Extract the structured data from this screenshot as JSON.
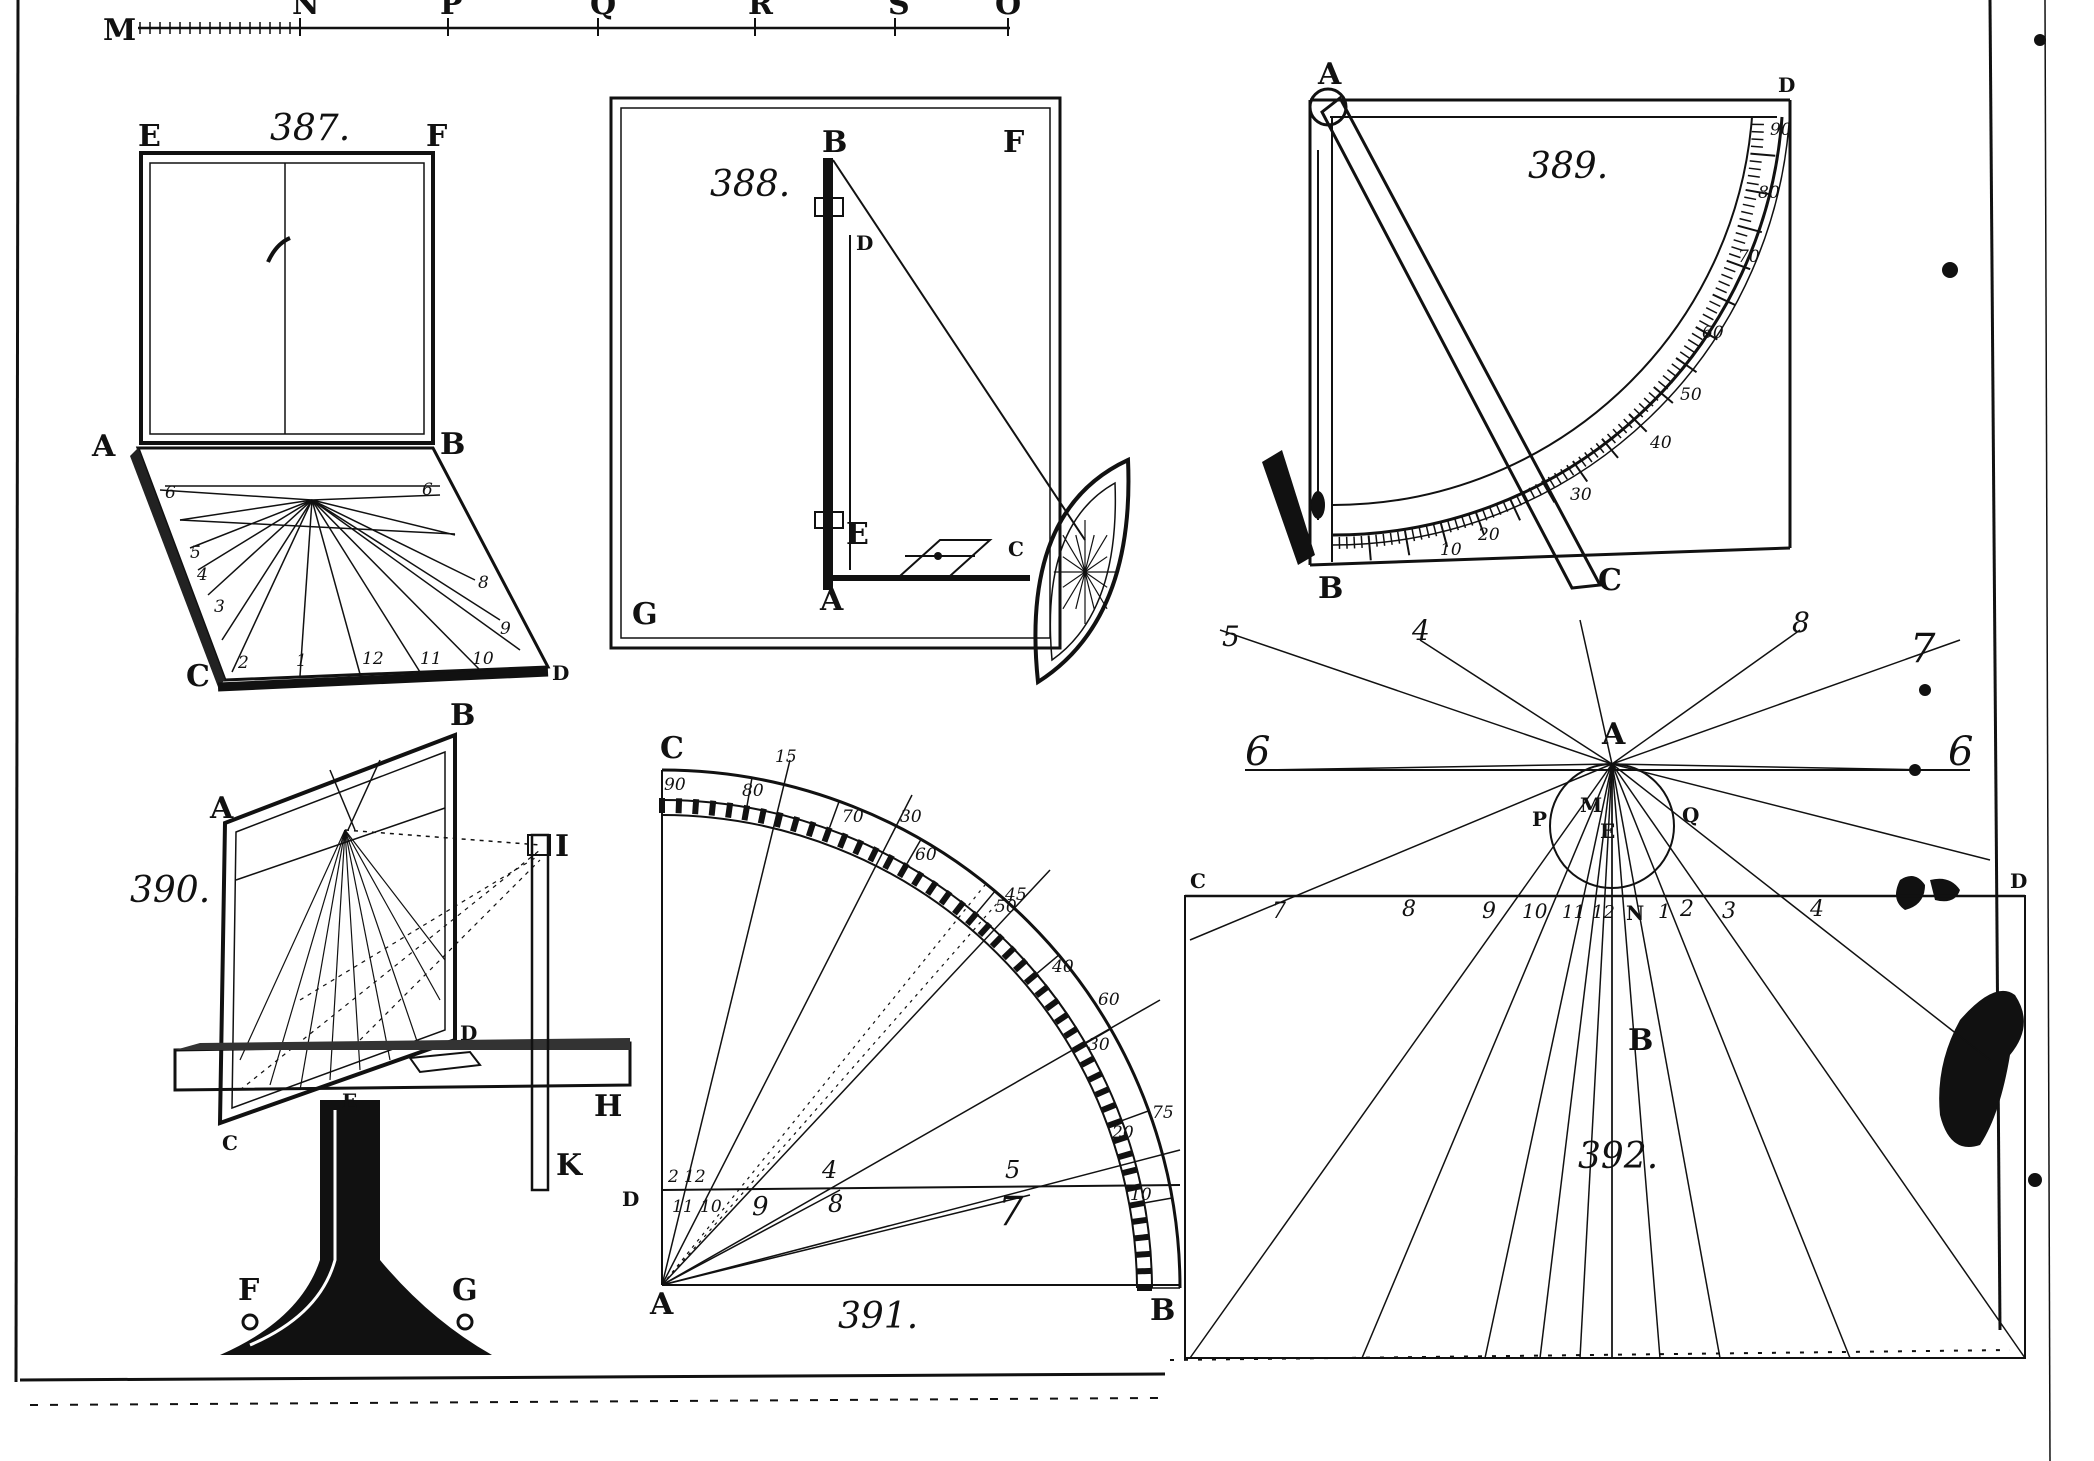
{
  "scale_bar": {
    "labels": [
      "M",
      "N",
      "P",
      "Q",
      "R",
      "S",
      "O"
    ]
  },
  "fig387": {
    "number": "387.",
    "labels": {
      "E": "E",
      "F": "F",
      "A": "A",
      "B": "B",
      "C": "C",
      "D": "D"
    },
    "hours_left": [
      "6",
      "5",
      "4",
      "3",
      "2"
    ],
    "hours_right": [
      "6",
      "8",
      "9"
    ],
    "hours_bottom": [
      "1",
      "12",
      "11",
      "10"
    ]
  },
  "fig388": {
    "number": "388.",
    "labels": {
      "B": "B",
      "F": "F",
      "D": "D",
      "E": "E",
      "C": "C",
      "A": "A",
      "G": "G"
    }
  },
  "fig389": {
    "number": "389.",
    "labels": {
      "A": "A",
      "D": "D",
      "B": "B",
      "C": "C"
    },
    "scale_numbers": [
      "10",
      "20",
      "30",
      "40",
      "50",
      "60",
      "70",
      "80",
      "90"
    ]
  },
  "fig390": {
    "number": "390.",
    "labels": {
      "A": "A",
      "B": "B",
      "C": "C",
      "D": "D",
      "E": "E",
      "I": "I",
      "H": "H",
      "K": "K",
      "F": "F",
      "G": "G"
    }
  },
  "fig391": {
    "number": "391.",
    "labels": {
      "C": "C",
      "A": "A",
      "B": "B",
      "D": "D"
    },
    "arc_outer": [
      "15",
      "30",
      "45",
      "60",
      "75"
    ],
    "arc_inner": [
      "90",
      "80",
      "70",
      "60",
      "50",
      "40",
      "30",
      "20",
      "10"
    ],
    "line_hours": [
      "4",
      "5",
      "7",
      "8",
      "9"
    ],
    "d_marks": [
      "2",
      "12",
      "11",
      "10"
    ]
  },
  "fig392": {
    "number": "392.",
    "labels": {
      "A": "A",
      "B": "B",
      "C": "C",
      "D": "D",
      "P": "P",
      "Q": "Q",
      "E": "E",
      "M": "M",
      "N": "N"
    },
    "rays": [
      "5",
      "4",
      "8",
      "7",
      "6",
      "6"
    ],
    "hours_on_line": [
      "7",
      "8",
      "9",
      "10",
      "11",
      "12",
      "1",
      "2",
      "3",
      "4"
    ]
  }
}
